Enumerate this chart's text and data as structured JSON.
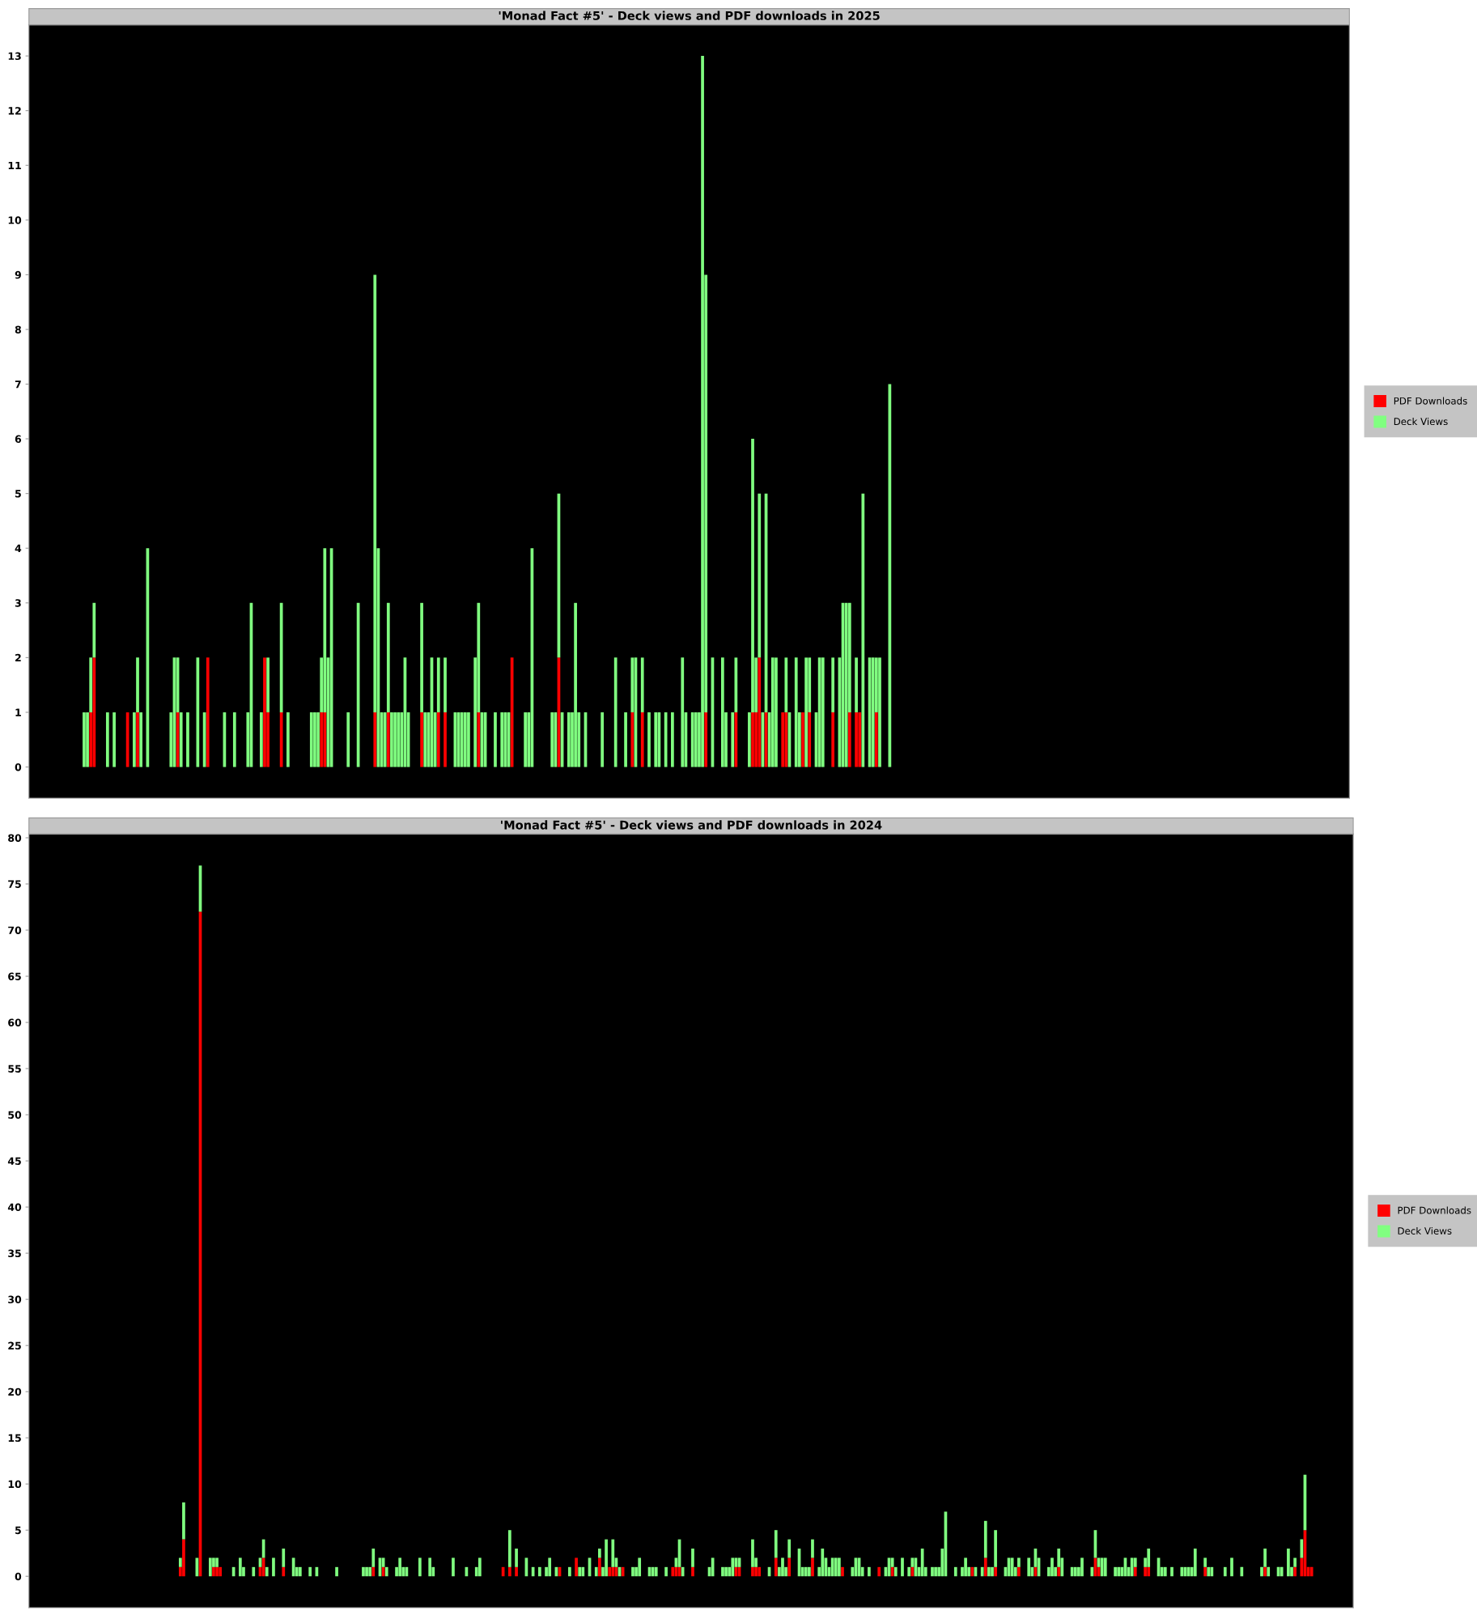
{
  "chart_data": [
    {
      "type": "bar",
      "title": "'Monad Fact #5' - Deck views and PDF downloads in 2025",
      "stacked": true,
      "legend": "right",
      "grid": false,
      "tick_labels": "y",
      "ylim": [
        -0.57,
        13.57
      ],
      "yticks": [
        0,
        1,
        2,
        3,
        4,
        5,
        6,
        7,
        8,
        9,
        10,
        11,
        12,
        13
      ],
      "categories": [
        null,
        null,
        null,
        null,
        null,
        null,
        null,
        null,
        null,
        null,
        null,
        null,
        null,
        null,
        null,
        null,
        null,
        null,
        null,
        null,
        null,
        null,
        null,
        null,
        null,
        null,
        null,
        null,
        null,
        null,
        null,
        null,
        null,
        null,
        null,
        null,
        null,
        null,
        null,
        null,
        null,
        null,
        null,
        null,
        null,
        null,
        null,
        null,
        null,
        null,
        null,
        null,
        null,
        null,
        null,
        null,
        null,
        null,
        null,
        null,
        null,
        null,
        null,
        null,
        null,
        null,
        null,
        null,
        null,
        null,
        null,
        null,
        null,
        null,
        null,
        null,
        null,
        null,
        null,
        null,
        null,
        null,
        null,
        null,
        null,
        null,
        null,
        null,
        null,
        null,
        null,
        null,
        null,
        null,
        null,
        null,
        null,
        null,
        null,
        null,
        null,
        null,
        null,
        null,
        null,
        null,
        null,
        null,
        null,
        null,
        null,
        null,
        null,
        null,
        null,
        null,
        null,
        null,
        null,
        null,
        null,
        null,
        null,
        null,
        null,
        null,
        null,
        null,
        null,
        null,
        null,
        null,
        null,
        null,
        null,
        null,
        null,
        null,
        null,
        null,
        null,
        null,
        null,
        null,
        null,
        null,
        null,
        null,
        null,
        null,
        null,
        null,
        null,
        null,
        null,
        null,
        null,
        null,
        null,
        null,
        null,
        null,
        null,
        null,
        null,
        null,
        null,
        null,
        null,
        null,
        null,
        null,
        null,
        null,
        null,
        null,
        null,
        null,
        null,
        null,
        null,
        null,
        null,
        null,
        null,
        null,
        null,
        null,
        null,
        null,
        null,
        null,
        null,
        null,
        null,
        null,
        null,
        null,
        null,
        null,
        null,
        null,
        null,
        null,
        null,
        null,
        null,
        null,
        null,
        null,
        null,
        null,
        null,
        null,
        null,
        null,
        null,
        null,
        null,
        null,
        null,
        null,
        null,
        null,
        null,
        null,
        null,
        null,
        null,
        null,
        null,
        null,
        null,
        null,
        null,
        null,
        null,
        null,
        null,
        null,
        null,
        null,
        null,
        null,
        null,
        null,
        null,
        null,
        null,
        null,
        null,
        null,
        null,
        null,
        null,
        null,
        null,
        null,
        null,
        null,
        null,
        null,
        null,
        null,
        null,
        null,
        null,
        null,
        null,
        null,
        null,
        null,
        null,
        null,
        null,
        null,
        null,
        null,
        null,
        null,
        null,
        null,
        null,
        null,
        null,
        null,
        null,
        null,
        null,
        null,
        null,
        null,
        null,
        null,
        null,
        null,
        null,
        null,
        null,
        null,
        null,
        null,
        null,
        null,
        null,
        null,
        null,
        null,
        null,
        null,
        null,
        null,
        null,
        null,
        null,
        null,
        null,
        null,
        null,
        null,
        null,
        null,
        null,
        null,
        null,
        null,
        null,
        null,
        null,
        null,
        null,
        null,
        null,
        null,
        null,
        null,
        null,
        null,
        null,
        null,
        null,
        null,
        null,
        null,
        null,
        null,
        null,
        null,
        null,
        null,
        null,
        null,
        null,
        null,
        null,
        null,
        null,
        null,
        null,
        null,
        null,
        null,
        null,
        null,
        null,
        null,
        null,
        null,
        null,
        null,
        null,
        null,
        null,
        null,
        null,
        null,
        null,
        null,
        null,
        null,
        null,
        null,
        null,
        null,
        null,
        null,
        null,
        null,
        null,
        null,
        null,
        null,
        null,
        null,
        null
      ],
      "series": [
        {
          "name": "PDF Downloads",
          "color": "#ff0000",
          "values": [
            null,
            null,
            null,
            null,
            null,
            null,
            null,
            null,
            null,
            null,
            null,
            null,
            null,
            null,
            null,
            null,
            0,
            0,
            1,
            2,
            0,
            0,
            0,
            0,
            0,
            0,
            0,
            0,
            0,
            1,
            0,
            0,
            1,
            0,
            0,
            0,
            0,
            0,
            0,
            0,
            0,
            0,
            0,
            0,
            1,
            0,
            0,
            0,
            0,
            0,
            0,
            0,
            0,
            2,
            0,
            0,
            0,
            0,
            0,
            0,
            0,
            0,
            0,
            0,
            0,
            0,
            0,
            0,
            0,
            0,
            2,
            1,
            0,
            0,
            0,
            1,
            0,
            0,
            0,
            0,
            0,
            0,
            0,
            0,
            0,
            0,
            0,
            1,
            1,
            0,
            0,
            0,
            0,
            0,
            0,
            0,
            0,
            0,
            0,
            0,
            0,
            0,
            0,
            1,
            0,
            0,
            0,
            1,
            0,
            0,
            0,
            0,
            0,
            0,
            0,
            0,
            0,
            1,
            0,
            0,
            0,
            0,
            1,
            0,
            1,
            0,
            0,
            0,
            0,
            0,
            0,
            0,
            0,
            0,
            1,
            0,
            0,
            0,
            0,
            0,
            0,
            0,
            0,
            0,
            2,
            0,
            0,
            0,
            0,
            0,
            0,
            0,
            0,
            0,
            0,
            0,
            0,
            0,
            2,
            0,
            0,
            0,
            0,
            0,
            0,
            0,
            0,
            0,
            0,
            0,
            0,
            0,
            0,
            0,
            0,
            0,
            0,
            0,
            0,
            0,
            1,
            0,
            0,
            1,
            0,
            0,
            0,
            0,
            0,
            0,
            0,
            0,
            0,
            0,
            0,
            0,
            0,
            0,
            0,
            0,
            0,
            0,
            1,
            0,
            0,
            0,
            0,
            0,
            0,
            0,
            0,
            1,
            0,
            0,
            0,
            0,
            1,
            1,
            2,
            0,
            1,
            0,
            0,
            0,
            0,
            1,
            1,
            0,
            0,
            0,
            0,
            1,
            0,
            1,
            0,
            0,
            0,
            0,
            0,
            0,
            1,
            0,
            0,
            0,
            0,
            1,
            0,
            1,
            1,
            0,
            0,
            0,
            0,
            1,
            0,
            0,
            0,
            0,
            null,
            null,
            null,
            null,
            null,
            null,
            null,
            null,
            null,
            null,
            null,
            null,
            null,
            null,
            null,
            null,
            null,
            null,
            null,
            null,
            null,
            null,
            null,
            null,
            null,
            null,
            null,
            null,
            null,
            null,
            null,
            null,
            null,
            null,
            null,
            null,
            null,
            null,
            null,
            null,
            null,
            null,
            null,
            null,
            null,
            null,
            null,
            null,
            null,
            null,
            null,
            null,
            null,
            null,
            null,
            null,
            null,
            null,
            null,
            null,
            null,
            null,
            null,
            null,
            null,
            null,
            null,
            null,
            null,
            null,
            null,
            null,
            null,
            null,
            null,
            null,
            null,
            null,
            null,
            null,
            null,
            null,
            null,
            null,
            null,
            null,
            null,
            null,
            null,
            null,
            null,
            null,
            null,
            null,
            null,
            null,
            null,
            null,
            null,
            null,
            null,
            null,
            null,
            null,
            null,
            null,
            null,
            null,
            null,
            null,
            null,
            null,
            null,
            null,
            null,
            null,
            null,
            null,
            null,
            null,
            null,
            null,
            null,
            null,
            null,
            null,
            null,
            null,
            null,
            null,
            null,
            null,
            null,
            null,
            null,
            null,
            null
          ]
        },
        {
          "name": "Deck Views",
          "color": "#80ff80",
          "values": [
            null,
            null,
            null,
            null,
            null,
            null,
            null,
            null,
            null,
            null,
            null,
            null,
            null,
            null,
            null,
            null,
            1,
            1,
            1,
            1,
            0,
            0,
            0,
            1,
            0,
            1,
            0,
            0,
            0,
            0,
            0,
            1,
            1,
            1,
            0,
            4,
            0,
            0,
            0,
            0,
            0,
            0,
            1,
            2,
            1,
            1,
            0,
            1,
            0,
            0,
            2,
            0,
            1,
            0,
            0,
            0,
            0,
            0,
            1,
            0,
            0,
            1,
            0,
            0,
            0,
            1,
            3,
            0,
            0,
            1,
            0,
            1,
            0,
            0,
            0,
            2,
            0,
            1,
            0,
            0,
            0,
            0,
            0,
            0,
            1,
            1,
            1,
            1,
            3,
            2,
            4,
            0,
            0,
            0,
            0,
            1,
            0,
            0,
            3,
            0,
            0,
            0,
            0,
            8,
            4,
            1,
            1,
            2,
            1,
            1,
            1,
            1,
            2,
            1,
            0,
            0,
            0,
            2,
            1,
            1,
            2,
            1,
            1,
            0,
            1,
            0,
            0,
            1,
            1,
            1,
            1,
            1,
            0,
            2,
            2,
            1,
            1,
            0,
            0,
            1,
            0,
            1,
            1,
            1,
            0,
            0,
            0,
            0,
            1,
            1,
            4,
            0,
            0,
            0,
            0,
            0,
            1,
            1,
            3,
            1,
            0,
            1,
            1,
            3,
            1,
            0,
            1,
            0,
            0,
            0,
            0,
            1,
            0,
            0,
            0,
            2,
            0,
            0,
            1,
            0,
            1,
            2,
            0,
            1,
            0,
            1,
            0,
            1,
            1,
            0,
            1,
            0,
            1,
            0,
            0,
            2,
            1,
            0,
            1,
            1,
            1,
            13,
            8,
            0,
            2,
            0,
            0,
            2,
            1,
            0,
            1,
            1,
            0,
            0,
            0,
            1,
            5,
            1,
            3,
            1,
            4,
            1,
            2,
            2,
            0,
            0,
            1,
            1,
            0,
            2,
            1,
            0,
            2,
            1,
            0,
            1,
            2,
            2,
            0,
            0,
            1,
            0,
            2,
            3,
            3,
            2,
            0,
            1,
            0,
            5,
            0,
            2,
            2,
            1,
            2,
            0,
            0,
            7,
            null,
            null,
            null,
            null,
            null,
            null,
            null,
            null,
            null,
            null,
            null,
            null,
            null,
            null,
            null,
            null,
            null,
            null,
            null,
            null,
            null,
            null,
            null,
            null,
            null,
            null,
            null,
            null,
            null,
            null,
            null,
            null,
            null,
            null,
            null,
            null,
            null,
            null,
            null,
            null,
            null,
            null,
            null,
            null,
            null,
            null,
            null,
            null,
            null,
            null,
            null,
            null,
            null,
            null,
            null,
            null,
            null,
            null,
            null,
            null,
            null,
            null,
            null,
            null,
            null,
            null,
            null,
            null,
            null,
            null,
            null,
            null,
            null,
            null,
            null,
            null,
            null,
            null,
            null,
            null,
            null,
            null,
            null,
            null,
            null,
            null,
            null,
            null,
            null,
            null,
            null,
            null,
            null,
            null,
            null,
            null,
            null,
            null,
            null,
            null,
            null,
            null,
            null,
            null,
            null,
            null,
            null,
            null,
            null,
            null,
            null,
            null,
            null,
            null,
            null,
            null,
            null,
            null,
            null,
            null,
            null,
            null,
            null,
            null,
            null,
            null,
            null,
            null,
            null,
            null,
            null,
            null,
            null,
            null,
            null,
            null,
            null
          ]
        }
      ]
    },
    {
      "type": "bar",
      "title": "'Monad Fact #5' - Deck views and PDF downloads in 2024",
      "stacked": true,
      "legend": "right",
      "grid": false,
      "tick_labels": "y",
      "ylim": [
        -3.4,
        80.4
      ],
      "yticks": [
        0,
        5,
        10,
        15,
        20,
        25,
        30,
        35,
        40,
        45,
        50,
        55,
        60,
        65,
        70,
        75,
        80
      ],
      "categories": [
        null,
        null,
        null,
        null,
        null,
        null,
        null,
        null,
        null,
        null,
        null,
        null,
        null,
        null,
        null,
        null,
        null,
        null,
        null,
        null,
        null,
        null,
        null,
        null,
        null,
        null,
        null,
        null,
        null,
        null,
        null,
        null,
        null,
        null,
        null,
        null,
        null,
        null,
        null,
        null,
        null,
        null,
        null,
        null,
        null,
        null,
        null,
        null,
        null,
        null,
        null,
        null,
        null,
        null,
        null,
        null,
        null,
        null,
        null,
        null,
        null,
        null,
        null,
        null,
        null,
        null,
        null,
        null,
        null,
        null,
        null,
        null,
        null,
        null,
        null,
        null,
        null,
        null,
        null,
        null,
        null,
        null,
        null,
        null,
        null,
        null,
        null,
        null,
        null,
        null,
        null,
        null,
        null,
        null,
        null,
        null,
        null,
        null,
        null,
        null,
        null,
        null,
        null,
        null,
        null,
        null,
        null,
        null,
        null,
        null,
        null,
        null,
        null,
        null,
        null,
        null,
        null,
        null,
        null,
        null,
        null,
        null,
        null,
        null,
        null,
        null,
        null,
        null,
        null,
        null,
        null,
        null,
        null,
        null,
        null,
        null,
        null,
        null,
        null,
        null,
        null,
        null,
        null,
        null,
        null,
        null,
        null,
        null,
        null,
        null,
        null,
        null,
        null,
        null,
        null,
        null,
        null,
        null,
        null,
        null,
        null,
        null,
        null,
        null,
        null,
        null,
        null,
        null,
        null,
        null,
        null,
        null,
        null,
        null,
        null,
        null,
        null,
        null,
        null,
        null,
        null,
        null,
        null,
        null,
        null,
        null,
        null,
        null,
        null,
        null,
        null,
        null,
        null,
        null,
        null,
        null,
        null,
        null,
        null,
        null,
        null,
        null,
        null,
        null,
        null,
        null,
        null,
        null,
        null,
        null,
        null,
        null,
        null,
        null,
        null,
        null,
        null,
        null,
        null,
        null,
        null,
        null,
        null,
        null,
        null,
        null,
        null,
        null,
        null,
        null,
        null,
        null,
        null,
        null,
        null,
        null,
        null,
        null,
        null,
        null,
        null,
        null,
        null,
        null,
        null,
        null,
        null,
        null,
        null,
        null,
        null,
        null,
        null,
        null,
        null,
        null,
        null,
        null,
        null,
        null,
        null,
        null,
        null,
        null,
        null,
        null,
        null,
        null,
        null,
        null,
        null,
        null,
        null,
        null,
        null,
        null,
        null,
        null,
        null,
        null,
        null,
        null,
        null,
        null,
        null,
        null,
        null,
        null,
        null,
        null,
        null,
        null,
        null,
        null,
        null,
        null,
        null,
        null,
        null,
        null,
        null,
        null,
        null,
        null,
        null,
        null,
        null,
        null,
        null,
        null,
        null,
        null,
        null,
        null,
        null,
        null,
        null,
        null,
        null,
        null,
        null,
        null,
        null,
        null,
        null,
        null,
        null,
        null,
        null,
        null,
        null,
        null,
        null,
        null,
        null,
        null,
        null,
        null,
        null,
        null,
        null,
        null,
        null,
        null,
        null,
        null,
        null,
        null,
        null,
        null,
        null,
        null,
        null,
        null,
        null,
        null,
        null,
        null,
        null,
        null,
        null,
        null,
        null,
        null,
        null,
        null,
        null,
        null,
        null,
        null,
        null,
        null,
        null,
        null,
        null,
        null,
        null,
        null,
        null,
        null,
        null,
        null,
        null,
        null,
        null,
        null,
        null,
        null,
        null,
        null,
        null,
        null,
        null,
        null,
        null,
        null,
        null,
        null
      ],
      "series": [
        {
          "name": "PDF Downloads",
          "color": "#ff0000",
          "values": [
            null,
            null,
            null,
            null,
            null,
            null,
            null,
            null,
            null,
            null,
            null,
            null,
            null,
            null,
            null,
            null,
            null,
            null,
            null,
            null,
            null,
            null,
            null,
            null,
            null,
            null,
            null,
            null,
            null,
            null,
            null,
            null,
            null,
            null,
            null,
            null,
            null,
            null,
            null,
            null,
            null,
            null,
            null,
            null,
            null,
            1,
            4,
            0,
            0,
            0,
            0,
            72,
            0,
            0,
            0,
            1,
            1,
            1,
            0,
            0,
            0,
            0,
            0,
            0,
            0,
            0,
            0,
            0,
            0,
            1,
            2,
            0,
            0,
            0,
            0,
            0,
            1,
            0,
            0,
            0,
            0,
            0,
            0,
            0,
            0,
            0,
            0,
            0,
            0,
            0,
            0,
            0,
            0,
            0,
            0,
            0,
            0,
            0,
            0,
            0,
            0,
            0,
            0,
            1,
            0,
            0,
            1,
            0,
            0,
            0,
            0,
            0,
            0,
            0,
            0,
            0,
            0,
            0,
            0,
            0,
            0,
            0,
            0,
            0,
            0,
            0,
            0,
            0,
            0,
            0,
            0,
            0,
            0,
            0,
            0,
            0,
            0,
            0,
            0,
            0,
            0,
            0,
            1,
            0,
            1,
            0,
            1,
            0,
            0,
            0,
            0,
            0,
            0,
            0,
            0,
            0,
            0,
            0,
            0,
            1,
            0,
            0,
            0,
            0,
            2,
            0,
            0,
            0,
            0,
            0,
            0,
            2,
            0,
            0,
            1,
            1,
            1,
            0,
            1,
            0,
            0,
            0,
            0,
            0,
            0,
            0,
            0,
            0,
            0,
            0,
            0,
            0,
            0,
            1,
            1,
            1,
            0,
            0,
            0,
            1,
            0,
            0,
            0,
            0,
            0,
            0,
            0,
            0,
            0,
            0,
            0,
            0,
            1,
            1,
            0,
            0,
            0,
            1,
            1,
            1,
            0,
            0,
            0,
            0,
            2,
            0,
            0,
            0,
            2,
            0,
            0,
            0,
            0,
            0,
            0,
            2,
            0,
            0,
            0,
            0,
            0,
            0,
            0,
            0,
            1,
            0,
            0,
            0,
            0,
            0,
            0,
            0,
            0,
            0,
            0,
            1,
            0,
            0,
            0,
            1,
            0,
            0,
            0,
            0,
            0,
            1,
            0,
            0,
            0,
            0,
            0,
            0,
            0,
            0,
            0,
            0,
            0,
            0,
            0,
            0,
            0,
            0,
            0,
            1,
            0,
            0,
            0,
            2,
            0,
            0,
            1,
            0,
            0,
            0,
            0,
            0,
            0,
            1,
            0,
            0,
            0,
            0,
            1,
            0,
            0,
            0,
            0,
            0,
            0,
            1,
            0,
            0,
            0,
            0,
            0,
            0,
            0,
            0,
            0,
            0,
            2,
            1,
            0,
            0,
            0,
            0,
            0,
            0,
            0,
            0,
            0,
            0,
            1,
            0,
            0,
            1,
            1,
            0,
            0,
            0,
            0,
            0,
            0,
            0,
            0,
            0,
            0,
            0,
            0,
            0,
            0,
            0,
            0,
            1,
            0,
            0,
            0,
            0,
            0,
            0,
            0,
            0,
            0,
            0,
            0,
            0,
            0,
            0,
            0,
            0,
            0,
            1,
            0,
            0,
            0,
            0,
            0,
            0,
            0,
            0,
            1,
            0,
            2,
            5,
            1,
            1,
            null,
            null,
            null,
            null,
            null,
            null,
            null,
            null,
            null,
            null,
            null,
            null
          ]
        },
        {
          "name": "Deck Views",
          "color": "#80ff80",
          "values": [
            null,
            null,
            null,
            null,
            null,
            null,
            null,
            null,
            null,
            null,
            null,
            null,
            null,
            null,
            null,
            null,
            null,
            null,
            null,
            null,
            null,
            null,
            null,
            null,
            null,
            null,
            null,
            null,
            null,
            null,
            null,
            null,
            null,
            null,
            null,
            null,
            null,
            null,
            null,
            null,
            null,
            null,
            null,
            null,
            null,
            1,
            4,
            0,
            0,
            0,
            2,
            5,
            0,
            0,
            2,
            1,
            1,
            0,
            0,
            0,
            0,
            1,
            0,
            2,
            1,
            0,
            0,
            1,
            0,
            1,
            2,
            1,
            0,
            2,
            0,
            0,
            2,
            0,
            0,
            2,
            1,
            1,
            0,
            0,
            1,
            0,
            1,
            0,
            0,
            0,
            0,
            0,
            1,
            0,
            0,
            0,
            0,
            0,
            0,
            0,
            1,
            1,
            1,
            2,
            0,
            2,
            1,
            1,
            0,
            0,
            1,
            2,
            1,
            1,
            0,
            0,
            0,
            2,
            0,
            0,
            2,
            1,
            0,
            0,
            0,
            0,
            0,
            2,
            0,
            0,
            0,
            1,
            0,
            0,
            1,
            2,
            0,
            0,
            0,
            0,
            0,
            0,
            0,
            0,
            4,
            0,
            2,
            0,
            0,
            2,
            0,
            1,
            0,
            1,
            0,
            1,
            2,
            0,
            1,
            0,
            0,
            0,
            1,
            0,
            0,
            1,
            1,
            0,
            2,
            0,
            1,
            1,
            1,
            4,
            0,
            3,
            1,
            1,
            0,
            0,
            0,
            1,
            1,
            2,
            0,
            0,
            1,
            1,
            1,
            0,
            0,
            1,
            0,
            0,
            1,
            3,
            1,
            0,
            0,
            2,
            0,
            0,
            0,
            0,
            1,
            2,
            0,
            0,
            1,
            1,
            1,
            2,
            1,
            1,
            0,
            0,
            0,
            3,
            1,
            0,
            0,
            0,
            1,
            0,
            3,
            1,
            2,
            1,
            2,
            0,
            0,
            3,
            1,
            1,
            1,
            2,
            0,
            1,
            3,
            2,
            1,
            2,
            2,
            2,
            0,
            0,
            0,
            1,
            2,
            2,
            1,
            0,
            1,
            0,
            0,
            0,
            0,
            1,
            2,
            1,
            1,
            0,
            2,
            0,
            1,
            1,
            2,
            1,
            3,
            1,
            0,
            1,
            1,
            1,
            3,
            7,
            0,
            0,
            1,
            0,
            1,
            2,
            1,
            0,
            1,
            0,
            1,
            4,
            1,
            1,
            4,
            0,
            0,
            1,
            2,
            2,
            1,
            1,
            0,
            0,
            2,
            1,
            2,
            2,
            0,
            0,
            1,
            2,
            1,
            2,
            2,
            0,
            0,
            1,
            1,
            1,
            2,
            0,
            0,
            1,
            3,
            1,
            2,
            2,
            0,
            0,
            1,
            1,
            1,
            2,
            1,
            2,
            1,
            0,
            0,
            1,
            2,
            0,
            0,
            2,
            1,
            1,
            0,
            1,
            0,
            0,
            1,
            1,
            1,
            1,
            3,
            0,
            0,
            1,
            1,
            1,
            0,
            0,
            0,
            1,
            0,
            2,
            0,
            0,
            1,
            0,
            0,
            0,
            0,
            0,
            1,
            2,
            1,
            0,
            0,
            1,
            1,
            0,
            3,
            1,
            1,
            0,
            2,
            6,
            0,
            0,
            null,
            null,
            null,
            null,
            null,
            null,
            null,
            null,
            null,
            null,
            null,
            null
          ]
        }
      ]
    }
  ]
}
